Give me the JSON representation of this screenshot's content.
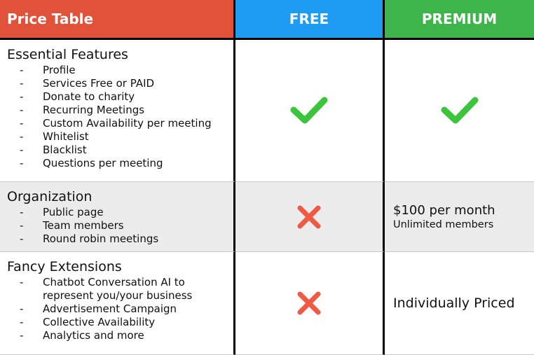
{
  "header": {
    "title": "Price Table",
    "free": "FREE",
    "premium": "PREMIUM"
  },
  "colors": {
    "title_bg": "#e0523a",
    "free_bg": "#1e9bf2",
    "premium_bg": "#3eb54a",
    "check": "#3cc43c",
    "cross": "#ef5a45"
  },
  "rows": [
    {
      "title": "Essential Features",
      "items": [
        "Profile",
        "Services Free or PAID",
        "Donate to charity",
        "Recurring Meetings",
        "Custom Availability per meeting",
        "Whitelist",
        "Blacklist",
        "Questions per meeting"
      ],
      "free": "checkmark-icon",
      "premium": "checkmark-icon"
    },
    {
      "title": "Organization",
      "items": [
        "Public page",
        "Team members",
        "Round robin meetings"
      ],
      "free": "cross-icon",
      "premium_price": "$100 per month",
      "premium_note": "Unlimited members"
    },
    {
      "title": "Fancy Extensions",
      "items": [
        "Chatbot Conversation AI to represent you/your business",
        "Advertisement Campaign",
        "Collective Availability",
        "Analytics and more"
      ],
      "free": "cross-icon",
      "premium_price": "Individually Priced"
    }
  ],
  "dash": "-"
}
